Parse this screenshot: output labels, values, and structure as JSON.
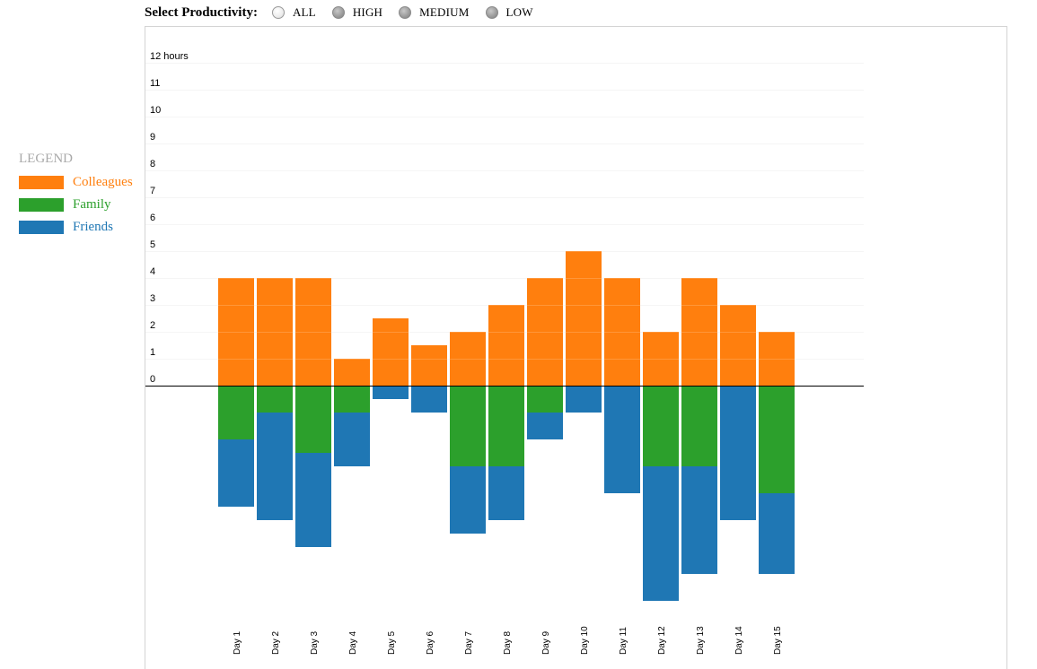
{
  "selector": {
    "label": "Select Productivity:",
    "options": [
      {
        "label": "ALL",
        "selected": true
      },
      {
        "label": "HIGH",
        "selected": false
      },
      {
        "label": "MEDIUM",
        "selected": false
      },
      {
        "label": "LOW",
        "selected": false
      }
    ]
  },
  "legend": {
    "title": "LEGEND",
    "items": [
      {
        "label": "Colleagues",
        "color": "#ff7f0e"
      },
      {
        "label": "Family",
        "color": "#2ca02c"
      },
      {
        "label": "Friends",
        "color": "#1f77b4"
      }
    ]
  },
  "chart_data": {
    "type": "bar",
    "stacked": true,
    "diverging": true,
    "categories": [
      "Day 1",
      "Day 2",
      "Day 3",
      "Day 4",
      "Day 5",
      "Day 6",
      "Day 7",
      "Day 8",
      "Day 9",
      "Day 10",
      "Day 11",
      "Day 12",
      "Day 13",
      "Day 14",
      "Day 15"
    ],
    "series": [
      {
        "name": "Colleagues",
        "color": "#ff7f0e",
        "direction": "up",
        "values": [
          4,
          4,
          4,
          1,
          2.5,
          1.5,
          2,
          3,
          4,
          5,
          4,
          2,
          4,
          3,
          2
        ]
      },
      {
        "name": "Family",
        "color": "#2ca02c",
        "direction": "down",
        "values": [
          2,
          1,
          2.5,
          1,
          0,
          0,
          3,
          3,
          1,
          0,
          0,
          3,
          3,
          0,
          4
        ]
      },
      {
        "name": "Friends",
        "color": "#1f77b4",
        "direction": "down",
        "values": [
          2.5,
          4,
          3.5,
          2,
          0.5,
          1,
          2.5,
          2,
          1,
          1,
          4,
          5,
          4,
          5,
          3
        ]
      }
    ],
    "yticks": [
      "0",
      "1",
      "2",
      "3",
      "4",
      "5",
      "6",
      "7",
      "8",
      "9",
      "10",
      "11",
      "12 hours"
    ],
    "ylim": [
      0,
      12
    ],
    "grid": true,
    "legend_position": "left"
  }
}
